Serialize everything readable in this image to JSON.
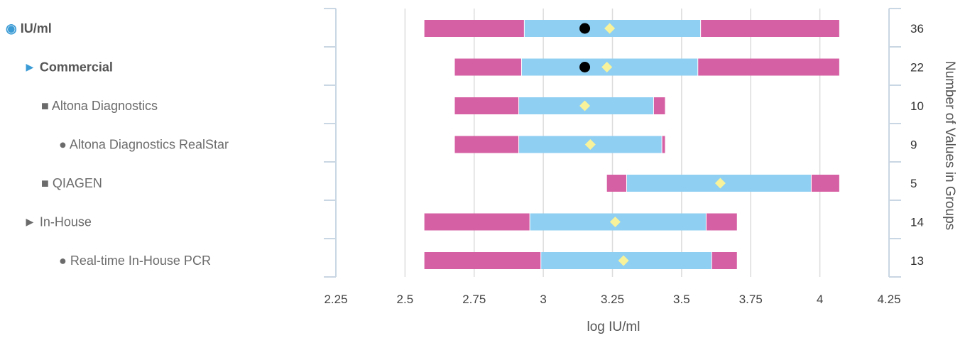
{
  "chart_data": {
    "type": "box",
    "orientation": "horizontal",
    "xlabel": "log IU/ml",
    "right_axis_label": "Number of Values in Groups",
    "xlim": [
      2.25,
      4.25
    ],
    "xticks": [
      "2.25",
      "2.5",
      "2.75",
      "3",
      "3.25",
      "3.5",
      "3.75",
      "4",
      "4.25"
    ],
    "grid": true,
    "colors": {
      "outer_range": "#d660a4",
      "inner_range": "#8fcff2",
      "mean_marker": "#f8f39a",
      "median_marker": "#000000",
      "label_accent": "#3a9bd5"
    },
    "rows": [
      {
        "label": "IU/ml",
        "prefix": "◉",
        "indent": 0,
        "bold": true,
        "accent": true,
        "count": "36",
        "min": 2.57,
        "q1": 2.93,
        "q3": 3.57,
        "max": 4.07,
        "mean": 3.24,
        "median": 3.15
      },
      {
        "label": "Commercial",
        "prefix": "►",
        "indent": 1,
        "bold": true,
        "accent": true,
        "count": "22",
        "min": 2.68,
        "q1": 2.92,
        "q3": 3.56,
        "max": 4.07,
        "mean": 3.23,
        "median": 3.15
      },
      {
        "label": "Altona Diagnostics",
        "prefix": "■",
        "indent": 2,
        "bold": false,
        "accent": false,
        "count": "10",
        "min": 2.68,
        "q1": 2.91,
        "q3": 3.4,
        "max": 3.44,
        "mean": 3.15,
        "median": null
      },
      {
        "label": "Altona Diagnostics RealStar",
        "prefix": "●",
        "indent": 3,
        "bold": false,
        "accent": false,
        "count": "9",
        "min": 2.68,
        "q1": 2.91,
        "q3": 3.43,
        "max": 3.44,
        "mean": 3.17,
        "median": null
      },
      {
        "label": "QIAGEN",
        "prefix": "■",
        "indent": 2,
        "bold": false,
        "accent": false,
        "count": "5",
        "min": 3.23,
        "q1": 3.3,
        "q3": 3.97,
        "max": 4.07,
        "mean": 3.64,
        "median": null
      },
      {
        "label": "In-House",
        "prefix": "►",
        "indent": 1,
        "bold": false,
        "accent": false,
        "count": "14",
        "min": 2.57,
        "q1": 2.95,
        "q3": 3.59,
        "max": 3.7,
        "mean": 3.26,
        "median": null
      },
      {
        "label": "Real-time In-House PCR",
        "prefix": "●",
        "indent": 3,
        "bold": false,
        "accent": false,
        "count": "13",
        "min": 2.57,
        "q1": 2.99,
        "q3": 3.61,
        "max": 3.7,
        "mean": 3.29,
        "median": null
      }
    ]
  }
}
